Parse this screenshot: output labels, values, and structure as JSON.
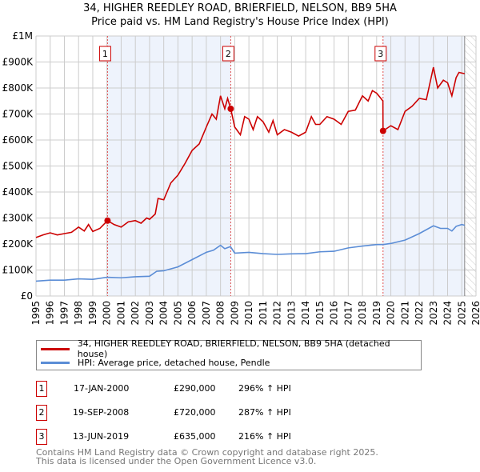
{
  "title": "34, HIGHER REEDLEY ROAD, BRIERFIELD, NELSON, BB9 5HA",
  "subtitle": "Price paid vs. HM Land Registry's House Price Index (HPI)",
  "chart_data": {
    "type": "line",
    "xlim": [
      1995,
      2026
    ],
    "ylim": [
      0,
      1000000
    ],
    "y_ticks": [
      {
        "v": 0,
        "label": "£0"
      },
      {
        "v": 100000,
        "label": "£100K"
      },
      {
        "v": 200000,
        "label": "£200K"
      },
      {
        "v": 300000,
        "label": "£300K"
      },
      {
        "v": 400000,
        "label": "£400K"
      },
      {
        "v": 500000,
        "label": "£500K"
      },
      {
        "v": 600000,
        "label": "£600K"
      },
      {
        "v": 700000,
        "label": "£700K"
      },
      {
        "v": 800000,
        "label": "£800K"
      },
      {
        "v": 900000,
        "label": "£900K"
      },
      {
        "v": 1000000,
        "label": "£1M"
      }
    ],
    "x_ticks": [
      1995,
      1996,
      1997,
      1998,
      1999,
      2000,
      2001,
      2002,
      2003,
      2004,
      2005,
      2006,
      2007,
      2008,
      2009,
      2010,
      2011,
      2012,
      2013,
      2014,
      2015,
      2016,
      2017,
      2018,
      2019,
      2020,
      2021,
      2022,
      2023,
      2024,
      2025,
      2026
    ],
    "shaded_ranges": [
      [
        2000.04,
        2008.72
      ],
      [
        2019.45,
        2025.2
      ]
    ],
    "forecast_hatch_from": 2025.2,
    "series": [
      {
        "name": "34, HIGHER REEDLEY ROAD, BRIERFIELD, NELSON, BB9 5HA (detached house)",
        "color": "#cc0000",
        "x": [
          1995,
          1995.5,
          1996,
          1996.5,
          1997,
          1997.5,
          1998,
          1998.4,
          1998.7,
          1999,
          1999.5,
          2000.04,
          2000.5,
          2001,
          2001.5,
          2002,
          2002.4,
          2002.8,
          2003,
          2003.4,
          2003.6,
          2004,
          2004.5,
          2005,
          2005.5,
          2006,
          2006.5,
          2007,
          2007.4,
          2007.7,
          2008,
          2008.3,
          2008.5,
          2008.72,
          2009,
          2009.4,
          2009.7,
          2010,
          2010.3,
          2010.6,
          2011,
          2011.4,
          2011.7,
          2012,
          2012.5,
          2013,
          2013.5,
          2014,
          2014.4,
          2014.7,
          2015,
          2015.5,
          2016,
          2016.5,
          2017,
          2017.5,
          2018,
          2018.4,
          2018.7,
          2019,
          2019.3,
          2019.44,
          2019.45,
          2020,
          2020.5,
          2021,
          2021.5,
          2022,
          2022.5,
          2023,
          2023.3,
          2023.7,
          2024,
          2024.3,
          2024.6,
          2024.8,
          2025.2
        ],
        "y": [
          225000,
          235000,
          243000,
          235000,
          240000,
          245000,
          265000,
          250000,
          275000,
          248000,
          260000,
          290000,
          275000,
          265000,
          285000,
          290000,
          280000,
          300000,
          295000,
          315000,
          375000,
          370000,
          435000,
          465000,
          510000,
          560000,
          585000,
          650000,
          700000,
          680000,
          770000,
          720000,
          760000,
          720000,
          650000,
          620000,
          690000,
          680000,
          640000,
          690000,
          670000,
          630000,
          675000,
          620000,
          640000,
          630000,
          615000,
          630000,
          690000,
          660000,
          660000,
          690000,
          680000,
          660000,
          710000,
          715000,
          770000,
          750000,
          790000,
          780000,
          760000,
          750000,
          635000,
          655000,
          640000,
          710000,
          730000,
          760000,
          755000,
          880000,
          800000,
          830000,
          820000,
          770000,
          840000,
          860000,
          855000
        ]
      },
      {
        "name": "HPI: Average price, detached house, Pendle",
        "color": "#5b8dd6",
        "x": [
          1995,
          1996,
          1997,
          1998,
          1999,
          2000,
          2001,
          2002,
          2003,
          2003.5,
          2004,
          2005,
          2006,
          2007,
          2007.5,
          2008,
          2008.3,
          2008.7,
          2009,
          2010,
          2011,
          2012,
          2013,
          2014,
          2015,
          2016,
          2017,
          2018,
          2019,
          2019.45,
          2020,
          2021,
          2022,
          2023,
          2023.5,
          2024,
          2024.3,
          2024.6,
          2025,
          2025.2
        ],
        "y": [
          57000,
          61000,
          61000,
          66000,
          64000,
          72000,
          70000,
          74000,
          76000,
          95000,
          97000,
          112000,
          140000,
          168000,
          176000,
          195000,
          182000,
          190000,
          165000,
          168000,
          163000,
          160000,
          162000,
          163000,
          170000,
          172000,
          185000,
          192000,
          198000,
          198000,
          202000,
          215000,
          240000,
          270000,
          260000,
          260000,
          250000,
          268000,
          275000,
          272000
        ]
      }
    ],
    "sales": [
      {
        "num": "1",
        "date": "17-JAN-2000",
        "x": 2000.04,
        "price": "£290,000",
        "value": 290000,
        "hpi": "296% ↑ HPI"
      },
      {
        "num": "2",
        "date": "19-SEP-2008",
        "x": 2008.72,
        "price": "£720,000",
        "value": 720000,
        "hpi": "287% ↑ HPI"
      },
      {
        "num": "3",
        "date": "13-JUN-2019",
        "x": 2019.45,
        "price": "£635,000",
        "value": 635000,
        "hpi": "216% ↑ HPI"
      }
    ]
  },
  "legend": {
    "red": "34, HIGHER REEDLEY ROAD, BRIERFIELD, NELSON, BB9 5HA (detached house)",
    "blue": "HPI: Average price, detached house, Pendle"
  },
  "footer": {
    "line1": "Contains HM Land Registry data © Crown copyright and database right 2025.",
    "line2": "This data is licensed under the Open Government Licence v3.0."
  }
}
